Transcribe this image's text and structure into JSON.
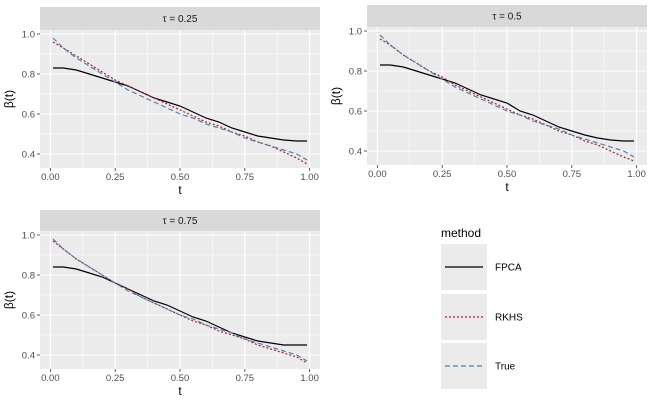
{
  "chart_data": {
    "type": "line",
    "facet_prefix": "τ = ",
    "xlabel": "t",
    "ylabel": "β(t)",
    "xlim": [
      -0.04,
      1.04
    ],
    "ylim": [
      0.33,
      1.02
    ],
    "x_ticks": [
      0.0,
      0.25,
      0.5,
      0.75,
      1.0
    ],
    "x_tick_labels": [
      "0.00",
      "0.25",
      "0.50",
      "0.75",
      "1.00"
    ],
    "y_ticks": [
      0.4,
      0.6,
      0.8,
      1.0
    ],
    "y_tick_labels": [
      "0.4",
      "0.6",
      "0.8",
      "1.0"
    ],
    "legend": {
      "title": "method",
      "entries": [
        {
          "label": "FPCA",
          "color": "#000000",
          "dash": "solid"
        },
        {
          "label": "RKHS",
          "color": "#b2182b",
          "dash": "dotted"
        },
        {
          "label": "True",
          "color": "#4682b4",
          "dash": "dashed"
        }
      ]
    },
    "panels": [
      {
        "tau": "0.25",
        "x": [
          0.01,
          0.05,
          0.1,
          0.15,
          0.2,
          0.25,
          0.3,
          0.35,
          0.4,
          0.45,
          0.5,
          0.55,
          0.6,
          0.65,
          0.7,
          0.75,
          0.8,
          0.85,
          0.9,
          0.95,
          0.99
        ],
        "series": [
          {
            "name": "FPCA",
            "values": [
              0.83,
              0.83,
              0.82,
              0.8,
              0.78,
              0.76,
              0.74,
              0.71,
              0.68,
              0.66,
              0.64,
              0.61,
              0.58,
              0.56,
              0.53,
              0.51,
              0.49,
              0.48,
              0.47,
              0.465,
              0.465
            ]
          },
          {
            "name": "RKHS",
            "values": [
              0.96,
              0.93,
              0.89,
              0.85,
              0.81,
              0.77,
              0.74,
              0.71,
              0.68,
              0.65,
              0.62,
              0.59,
              0.56,
              0.54,
              0.51,
              0.49,
              0.46,
              0.44,
              0.41,
              0.38,
              0.35
            ]
          },
          {
            "name": "True",
            "values": [
              0.98,
              0.93,
              0.88,
              0.84,
              0.8,
              0.76,
              0.72,
              0.69,
              0.66,
              0.63,
              0.6,
              0.58,
              0.55,
              0.53,
              0.51,
              0.48,
              0.46,
              0.44,
              0.42,
              0.4,
              0.37
            ]
          }
        ]
      },
      {
        "tau": "0.5",
        "x": [
          0.01,
          0.05,
          0.1,
          0.15,
          0.2,
          0.25,
          0.3,
          0.35,
          0.4,
          0.45,
          0.5,
          0.55,
          0.6,
          0.65,
          0.7,
          0.75,
          0.8,
          0.85,
          0.9,
          0.95,
          0.99
        ],
        "series": [
          {
            "name": "FPCA",
            "values": [
              0.83,
              0.83,
              0.82,
              0.8,
              0.78,
              0.76,
              0.74,
              0.71,
              0.68,
              0.66,
              0.64,
              0.6,
              0.58,
              0.55,
              0.52,
              0.5,
              0.48,
              0.465,
              0.455,
              0.45,
              0.45
            ]
          },
          {
            "name": "RKHS",
            "values": [
              0.96,
              0.93,
              0.88,
              0.84,
              0.8,
              0.77,
              0.73,
              0.7,
              0.67,
              0.64,
              0.61,
              0.58,
              0.56,
              0.53,
              0.5,
              0.48,
              0.45,
              0.43,
              0.4,
              0.37,
              0.35
            ]
          },
          {
            "name": "True",
            "values": [
              0.98,
              0.93,
              0.88,
              0.84,
              0.8,
              0.76,
              0.72,
              0.69,
              0.66,
              0.63,
              0.6,
              0.58,
              0.55,
              0.53,
              0.51,
              0.48,
              0.46,
              0.44,
              0.42,
              0.4,
              0.37
            ]
          }
        ]
      },
      {
        "tau": "0.75",
        "x": [
          0.01,
          0.05,
          0.1,
          0.15,
          0.2,
          0.25,
          0.3,
          0.35,
          0.4,
          0.45,
          0.5,
          0.55,
          0.6,
          0.65,
          0.7,
          0.75,
          0.8,
          0.85,
          0.9,
          0.95,
          0.99
        ],
        "series": [
          {
            "name": "FPCA",
            "values": [
              0.84,
              0.84,
              0.83,
              0.81,
              0.79,
              0.76,
              0.73,
              0.7,
              0.67,
              0.65,
              0.62,
              0.59,
              0.57,
              0.54,
              0.51,
              0.49,
              0.47,
              0.46,
              0.45,
              0.45,
              0.45
            ]
          },
          {
            "name": "RKHS",
            "values": [
              0.97,
              0.93,
              0.88,
              0.84,
              0.8,
              0.76,
              0.73,
              0.69,
              0.66,
              0.63,
              0.6,
              0.57,
              0.55,
              0.52,
              0.5,
              0.48,
              0.45,
              0.43,
              0.41,
              0.39,
              0.36
            ]
          },
          {
            "name": "True",
            "values": [
              0.98,
              0.93,
              0.88,
              0.84,
              0.8,
              0.76,
              0.72,
              0.69,
              0.66,
              0.63,
              0.6,
              0.58,
              0.55,
              0.53,
              0.51,
              0.48,
              0.46,
              0.44,
              0.42,
              0.4,
              0.37
            ]
          }
        ]
      }
    ]
  }
}
